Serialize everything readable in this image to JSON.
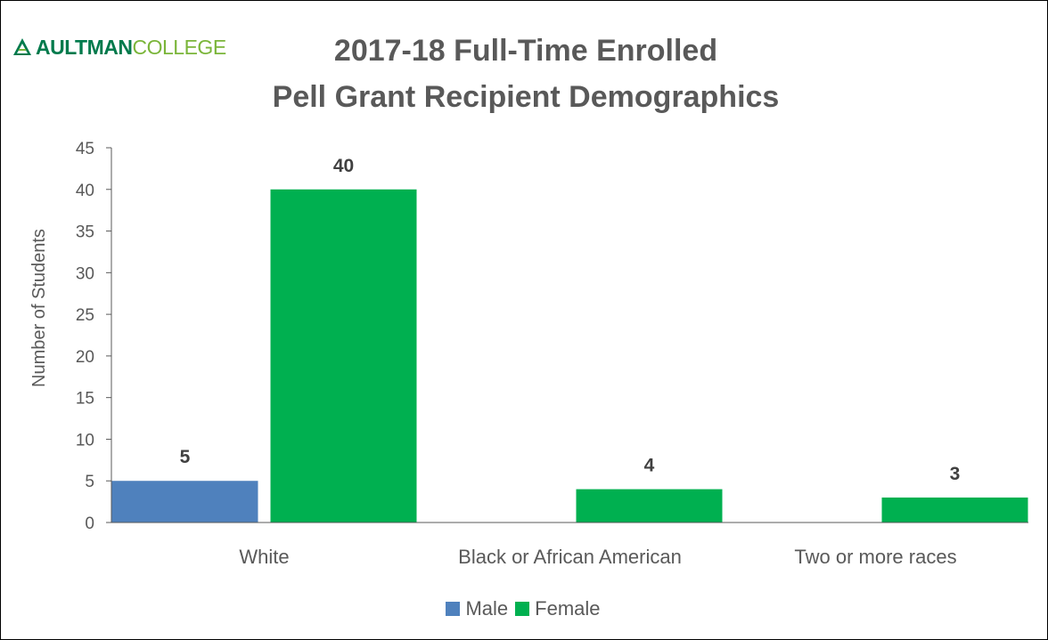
{
  "logo": {
    "text_bold": "AULTMAN",
    "text_light": "COLLEGE",
    "colors": {
      "bold": "#007a4c",
      "light": "#7ab539"
    }
  },
  "chart_data": {
    "type": "bar",
    "title_line1": "2017-18 Full-Time Enrolled",
    "title_line2": "Pell Grant Recipient Demographics",
    "ylabel": "Number of Students",
    "xlabel": "",
    "ylim": [
      0,
      45
    ],
    "yticks": [
      0,
      5,
      10,
      15,
      20,
      25,
      30,
      35,
      40,
      45
    ],
    "categories": [
      "White",
      "Black or African American",
      "Two or more races"
    ],
    "series": [
      {
        "name": "Male",
        "color": "#4f81bd",
        "values": [
          5,
          0,
          0
        ]
      },
      {
        "name": "Female",
        "color": "#00b050",
        "values": [
          40,
          4,
          3
        ]
      }
    ],
    "data_labels": [
      {
        "series": 0,
        "category": 0,
        "text": "5"
      },
      {
        "series": 1,
        "category": 0,
        "text": "40"
      },
      {
        "series": 1,
        "category": 1,
        "text": "4"
      },
      {
        "series": 1,
        "category": 2,
        "text": "3"
      }
    ],
    "legend_position": "bottom",
    "grid": false
  }
}
